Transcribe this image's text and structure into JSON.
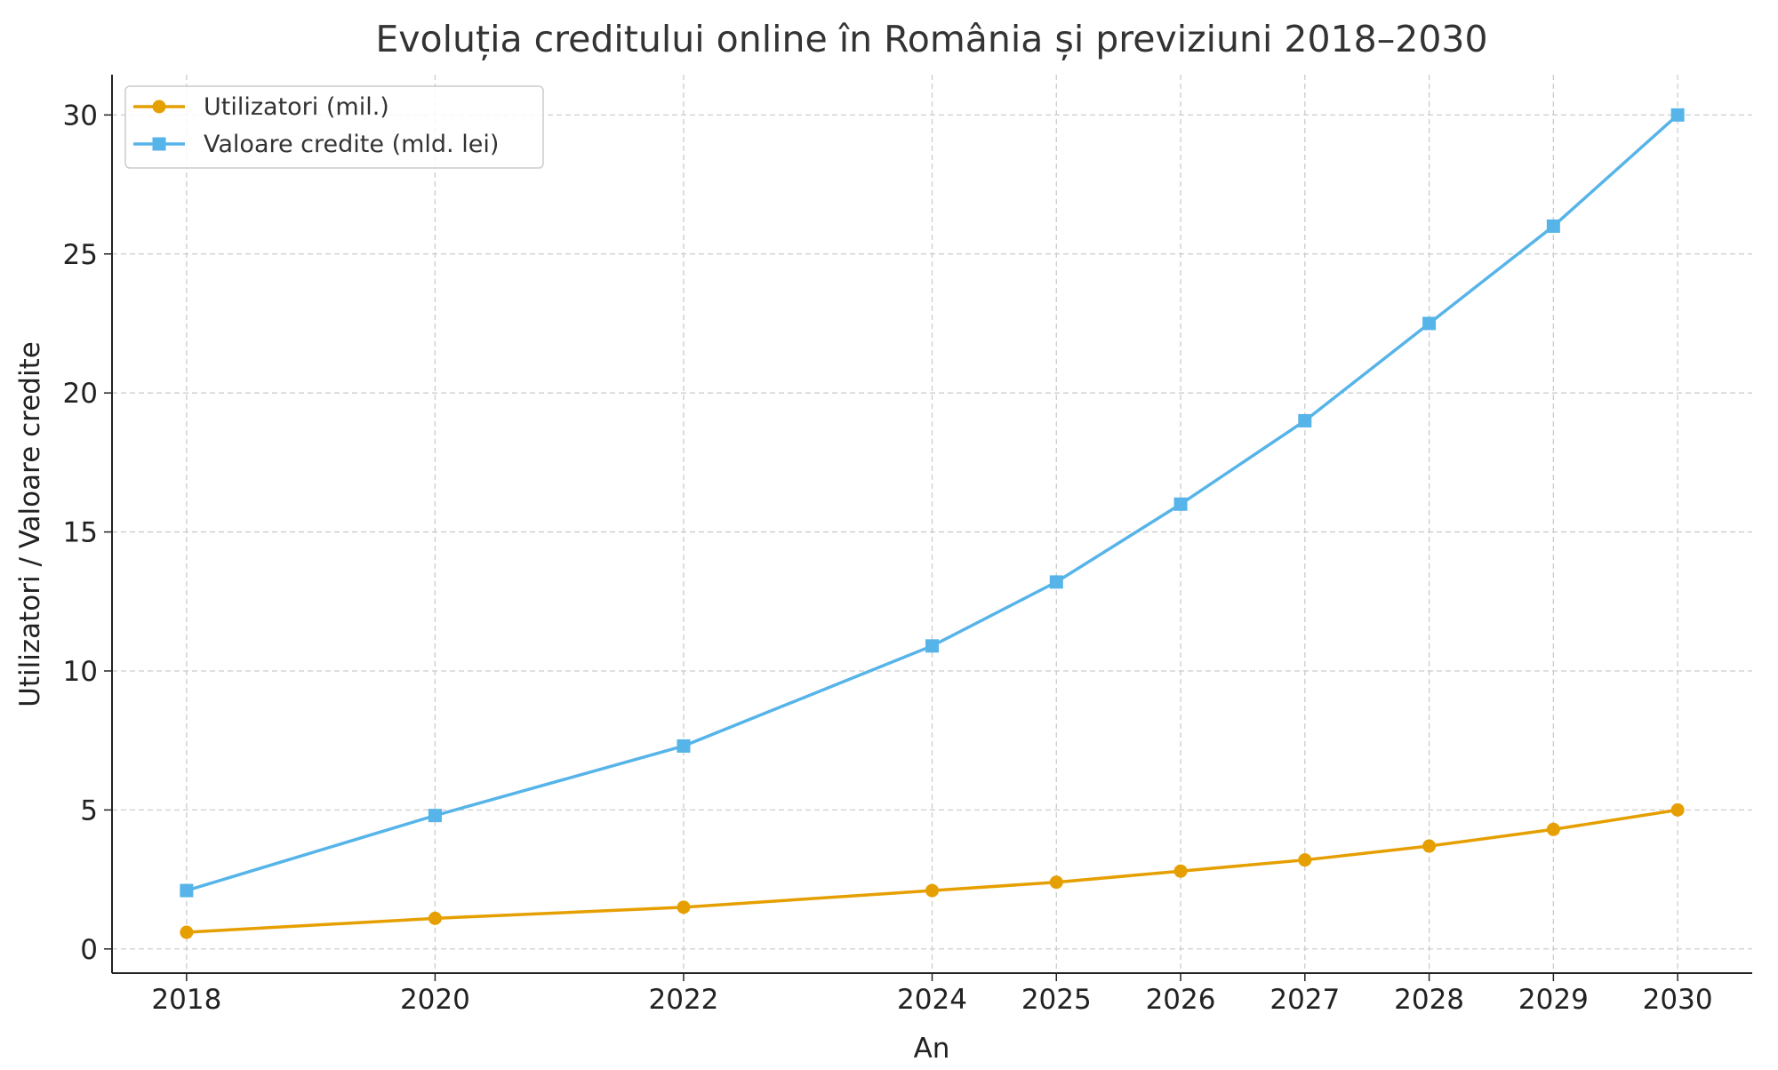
{
  "chart_data": {
    "type": "line",
    "title": "Evoluția creditului online în România și previziuni 2018–2030",
    "xlabel": "An",
    "ylabel": "Utilizatori / Valoare credite",
    "x": [
      2018,
      2020,
      2022,
      2024,
      2025,
      2026,
      2027,
      2028,
      2029,
      2030
    ],
    "xticks": [
      "2018",
      "2020",
      "2022",
      "2024",
      "2025",
      "2026",
      "2027",
      "2028",
      "2029",
      "2030"
    ],
    "yticks": [
      "0",
      "5",
      "10",
      "15",
      "20",
      "25",
      "30"
    ],
    "xlim": [
      2017.4,
      2030.6
    ],
    "ylim": [
      -0.87,
      31.45
    ],
    "grid": true,
    "legend_position": "top-left",
    "series": [
      {
        "name": "Utilizatori (mil.)",
        "color": "#E69F00",
        "marker": "circle",
        "values": [
          0.6,
          1.1,
          1.5,
          2.1,
          2.4,
          2.8,
          3.2,
          3.7,
          4.3,
          5.0
        ]
      },
      {
        "name": "Valoare credite (mld. lei)",
        "color": "#56B4E9",
        "marker": "square",
        "values": [
          2.1,
          4.8,
          7.3,
          10.9,
          13.2,
          16.0,
          19.0,
          22.5,
          26.0,
          30.0
        ]
      }
    ]
  }
}
